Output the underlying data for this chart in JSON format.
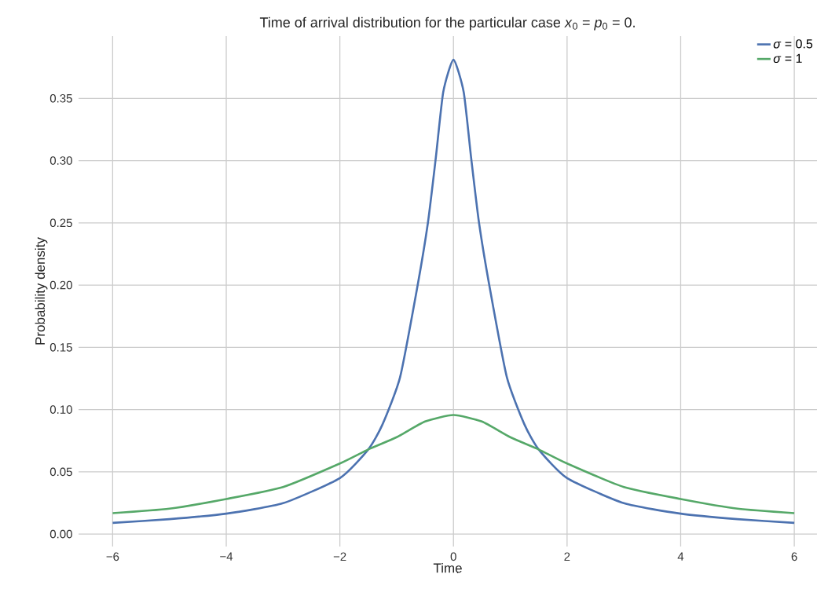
{
  "chart_data": {
    "type": "line",
    "title": "Time of arrival distribution for the particular case *x*$_{0}$ = *p*$_{0}$ = 0.",
    "xlabel": "Time",
    "ylabel": "Probability density",
    "xlim": [
      -6.6,
      6.4
    ],
    "ylim": [
      -0.01,
      0.4
    ],
    "xticks": [
      {
        "value": -6,
        "label": "−6"
      },
      {
        "value": -4,
        "label": "−4"
      },
      {
        "value": -2,
        "label": "−2"
      },
      0,
      2,
      4,
      6
    ],
    "yticks": [
      {
        "value": 0,
        "label": "0.00"
      },
      {
        "value": 0.05,
        "label": "0.05"
      },
      {
        "value": 0.1,
        "label": "0.10"
      },
      {
        "value": 0.15,
        "label": "0.15"
      },
      {
        "value": 0.2,
        "label": "0.20"
      },
      {
        "value": 0.25,
        "label": "0.25"
      },
      {
        "value": 0.3,
        "label": "0.30"
      },
      {
        "value": 0.35,
        "label": "0.35"
      }
    ],
    "grid": true,
    "legend": "top right",
    "marker": "none",
    "line_style": "solid",
    "x": [
      -6,
      -5,
      -4,
      -3,
      -2,
      -1.5,
      -1.25,
      -0.94,
      -0.64,
      -0.45,
      -0.31,
      -0.18,
      0,
      0.18,
      0.31,
      0.45,
      0.64,
      0.94,
      1.25,
      1.5,
      2,
      3,
      4,
      5,
      6
    ],
    "series": [
      {
        "name": "*σ* = 0.5",
        "color": "#4c72b0",
        "values": [
          0.009,
          0.012,
          0.0164,
          0.0248,
          0.045,
          0.068,
          0.088,
          0.126,
          0.1975,
          0.25,
          0.3026,
          0.355,
          0.381,
          0.355,
          0.3026,
          0.25,
          0.1975,
          0.126,
          0.088,
          0.068,
          0.045,
          0.0248,
          0.0164,
          0.012,
          0.009
        ]
      },
      {
        "name": "*σ* = 1",
        "color": "#55a868",
        "x": [
          -6,
          -5,
          -4,
          -3,
          -2,
          -1.5,
          -1,
          -0.5,
          0,
          0.5,
          1,
          1.5,
          2,
          3,
          4,
          5,
          6
        ],
        "values": [
          0.0168,
          0.0204,
          0.0282,
          0.0378,
          0.0567,
          0.068,
          0.0778,
          0.0904,
          0.0956,
          0.0904,
          0.0778,
          0.068,
          0.0567,
          0.0378,
          0.0282,
          0.0204,
          0.0168
        ]
      }
    ]
  }
}
